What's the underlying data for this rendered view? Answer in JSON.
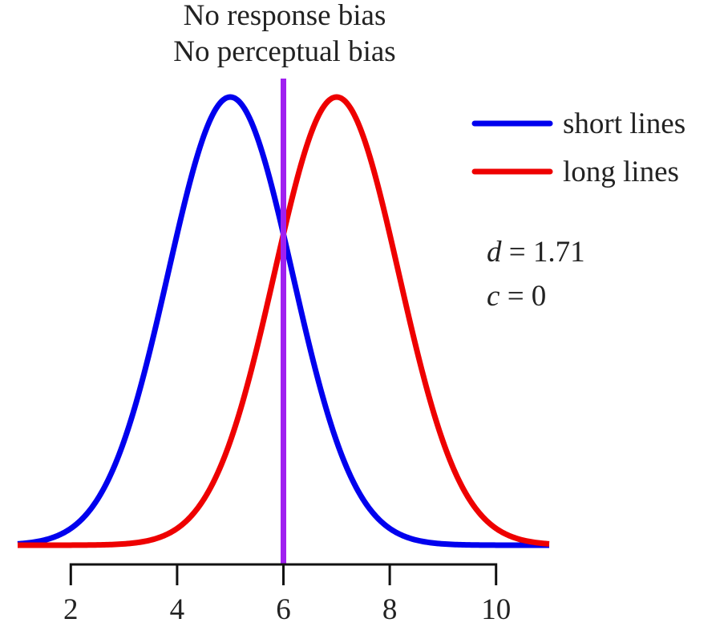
{
  "chart_data": {
    "type": "line",
    "title": [
      "No response bias",
      "No perceptual bias"
    ],
    "xlabel": "",
    "ylabel": "",
    "xlim": [
      1,
      11
    ],
    "xticks": [
      2,
      4,
      6,
      8,
      10
    ],
    "series": [
      {
        "name": "short lines",
        "color": "#0000ee",
        "mean": 5,
        "sd": 1.17
      },
      {
        "name": "long lines",
        "color": "#ee0000",
        "mean": 7,
        "sd": 1.17
      }
    ],
    "criterion": {
      "x": 6,
      "color": "#a020f0"
    },
    "annotations": [
      {
        "symbol": "d",
        "rest": " = 1.71"
      },
      {
        "symbol": "c",
        "rest": " = 0"
      }
    ],
    "legend": "right"
  }
}
